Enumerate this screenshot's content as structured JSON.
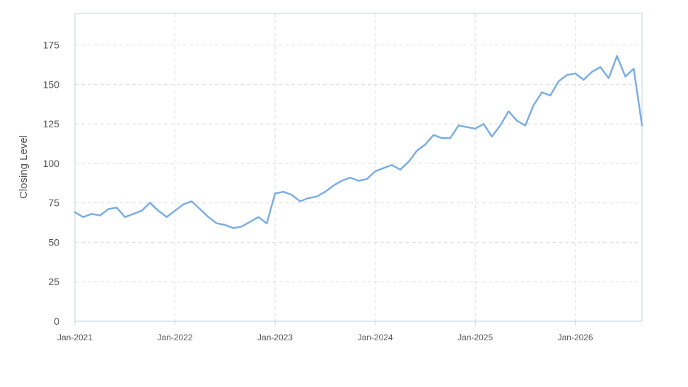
{
  "chart_data": {
    "type": "line",
    "title": "",
    "xlabel": "",
    "ylabel": "Closing Level",
    "ylim": [
      0,
      195
    ],
    "yticks": [
      0,
      25,
      50,
      75,
      100,
      125,
      150,
      175
    ],
    "ytick_labels": [
      "0",
      "25",
      "50",
      "75",
      "100",
      "125",
      "150",
      "175"
    ],
    "xlim": [
      "2021-01",
      "2026-09"
    ],
    "xticks": [
      "2021-01",
      "2022-01",
      "2023-01",
      "2024-01",
      "2025-01",
      "2026-01"
    ],
    "xtick_labels": [
      "Jan-2021",
      "Jan-2022",
      "Jan-2023",
      "Jan-2024",
      "Jan-2025",
      "Jan-2026"
    ],
    "grid": true,
    "legend": "none",
    "colors": {
      "line": "#7aaee3",
      "grid": "#dddddd",
      "axis": "#c5cfe0"
    },
    "series": [
      {
        "x": [
          "2021-01",
          "2021-02",
          "2021-03",
          "2021-04",
          "2021-05",
          "2021-06",
          "2021-07",
          "2021-08",
          "2021-09",
          "2021-10",
          "2021-11",
          "2021-12",
          "2022-01",
          "2022-02",
          "2022-03",
          "2022-04",
          "2022-05",
          "2022-06",
          "2022-07",
          "2022-08",
          "2022-09",
          "2022-10",
          "2022-11",
          "2022-12",
          "2023-01",
          "2023-02",
          "2023-03",
          "2023-04",
          "2023-05",
          "2023-06",
          "2023-07",
          "2023-08",
          "2023-09",
          "2023-10",
          "2023-11",
          "2023-12",
          "2024-01",
          "2024-02",
          "2024-03",
          "2024-04",
          "2024-05",
          "2024-06",
          "2024-07",
          "2024-08",
          "2024-09",
          "2024-10",
          "2024-11",
          "2024-12",
          "2025-01",
          "2025-02",
          "2025-03",
          "2025-04",
          "2025-05",
          "2025-06",
          "2025-07",
          "2025-08",
          "2025-09",
          "2025-10",
          "2025-11",
          "2025-12",
          "2026-01",
          "2026-02",
          "2026-03",
          "2026-04",
          "2026-05",
          "2026-06",
          "2026-07",
          "2026-08",
          "2026-09"
        ],
        "y": [
          69,
          66,
          68,
          67,
          71,
          72,
          66,
          68,
          70,
          75,
          70,
          66,
          70,
          74,
          76,
          71,
          66,
          62,
          61,
          59,
          60,
          63,
          66,
          62,
          81,
          82,
          80,
          76,
          78,
          79,
          82,
          86,
          89,
          91,
          89,
          90,
          95,
          97,
          99,
          96,
          101,
          108,
          112,
          118,
          116,
          116,
          124,
          123,
          122,
          125,
          117,
          124,
          133,
          127,
          124,
          137,
          145,
          143,
          152,
          156,
          157,
          153,
          158,
          161,
          154,
          168,
          155,
          160,
          124
        ]
      }
    ]
  }
}
